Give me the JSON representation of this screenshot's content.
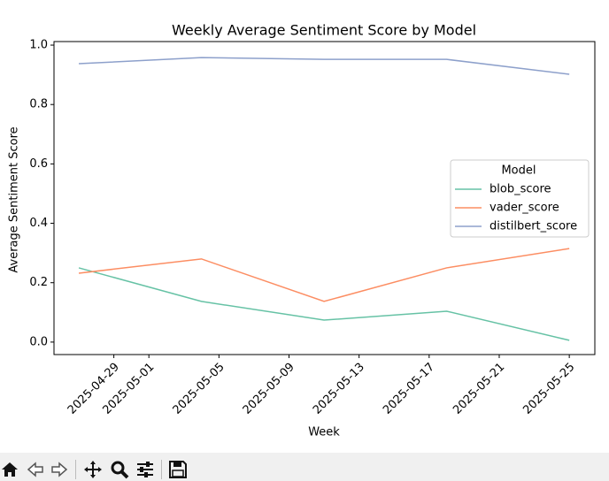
{
  "chart_data": {
    "type": "line",
    "title": "Weekly Average Sentiment Score by Model",
    "x_label": "Week",
    "y_label": "Average Sentiment Score",
    "x": [
      "2025-04-27",
      "2025-05-04",
      "2025-05-11",
      "2025-05-18",
      "2025-05-25"
    ],
    "series": [
      {
        "name": "blob_score",
        "color": "#66c2a5",
        "values": [
          0.25,
          0.137,
          0.074,
          0.104,
          0.006
        ]
      },
      {
        "name": "vader_score",
        "color": "#fc8d62",
        "values": [
          0.232,
          0.28,
          0.137,
          0.25,
          0.315
        ]
      },
      {
        "name": "distilbert_score",
        "color": "#8da0cb",
        "values": [
          0.9375,
          0.958,
          0.952,
          0.952,
          0.902
        ]
      }
    ],
    "legend_title": "Model",
    "legend_position": "center right",
    "xlim": [
      "2025-04-25T14:00:00Z",
      "2025-05-26T11:00:00Z"
    ],
    "xticks": [
      "2025-04-29",
      "2025-05-01",
      "2025-05-05",
      "2025-05-09",
      "2025-05-13",
      "2025-05-17",
      "2025-05-21",
      "2025-05-25"
    ],
    "ylim": [
      -0.042,
      1.012
    ],
    "yticks": [
      {
        "value": 0,
        "label": "0.0"
      },
      0.2,
      0.4,
      0.6,
      0.8,
      {
        "value": 1,
        "label": "1.0"
      }
    ],
    "grid": false
  }
}
